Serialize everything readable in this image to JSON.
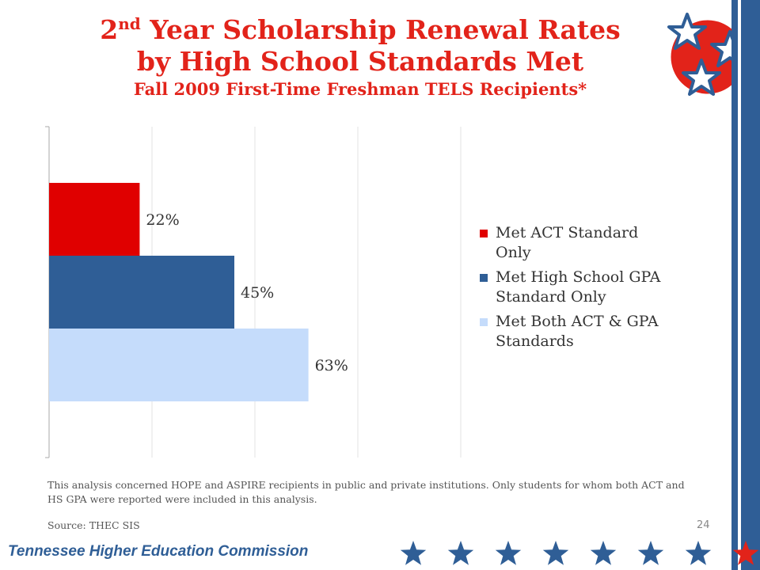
{
  "title": {
    "line1_prefix": "2",
    "line1_sup": "nd",
    "line1_rest": " Year Scholarship Renewal Rates",
    "line2": "by High School Standards Met",
    "line3": "Fall 2009 First-Time Freshman TELS Recipients*"
  },
  "chart_data": {
    "type": "bar",
    "orientation": "horizontal",
    "series": [
      {
        "name": "Met ACT Standard Only",
        "value": 22,
        "label": "22%",
        "color": "#e00000"
      },
      {
        "name": "Met High School GPA Standard Only",
        "value": 45,
        "label": "45%",
        "color": "#2f5e96"
      },
      {
        "name": "Met Both ACT & GPA Standards",
        "value": 63,
        "label": "63%",
        "color": "#c5dcfb"
      }
    ],
    "xlim": [
      0,
      100
    ],
    "grid": true,
    "legend_position": "right"
  },
  "legend": {
    "items": [
      {
        "line1": "Met ACT Standard",
        "line2": "Only",
        "color": "#e00000"
      },
      {
        "line1": "Met High School GPA",
        "line2": "Standard Only",
        "color": "#2f5e96"
      },
      {
        "line1": "Met Both ACT & GPA",
        "line2": "Standards",
        "color": "#c5dcfb"
      }
    ]
  },
  "note": "This analysis concerned HOPE and ASPIRE recipients in public and private institutions. Only students for whom both ACT and HS GPA were reported were included in this analysis.",
  "source": "Source: THEC SIS",
  "page_number": "24",
  "footer": {
    "org": "Tennessee Higher Education Commission",
    "star_color": "#2f5e96",
    "accent_star_color": "#e2231a"
  },
  "logo": {
    "icon": "tennessee-tri-star-icon",
    "circle_color": "#e2231a",
    "star_color": "#2f5e96"
  }
}
